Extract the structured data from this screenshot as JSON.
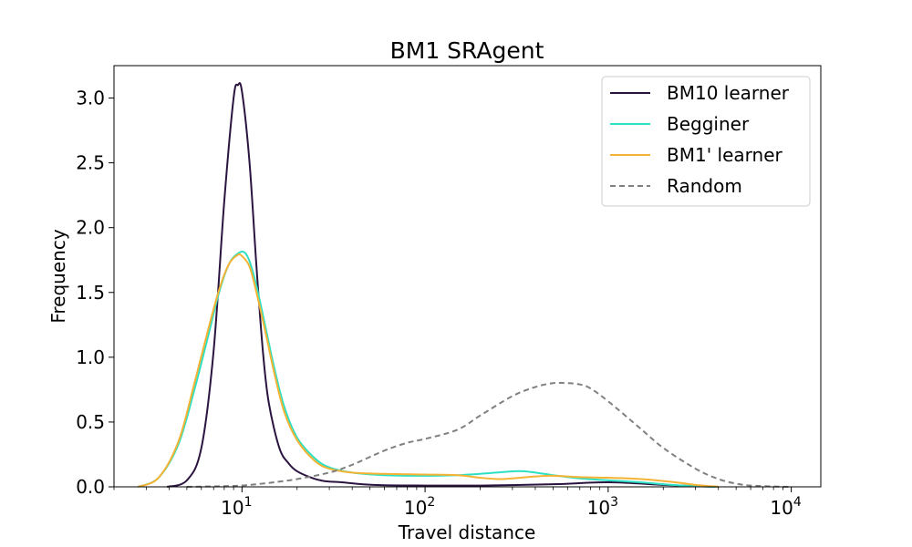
{
  "chart_data": {
    "type": "line",
    "title": "BM1 SRAgent",
    "xlabel": "Travel distance",
    "ylabel": "Frequency",
    "xscale": "log",
    "xlim": [
      2,
      14500
    ],
    "ylim": [
      0,
      3.25
    ],
    "xticks": [
      {
        "value": 10,
        "base": "10",
        "exp": "1"
      },
      {
        "value": 100,
        "base": "10",
        "exp": "2"
      },
      {
        "value": 1000,
        "base": "10",
        "exp": "3"
      },
      {
        "value": 10000,
        "base": "10",
        "exp": "4"
      }
    ],
    "yticks": [
      {
        "value": 0,
        "label": "0.0"
      },
      {
        "value": 0.5,
        "label": "0.5"
      },
      {
        "value": 1.0,
        "label": "1.0"
      },
      {
        "value": 1.5,
        "label": "1.5"
      },
      {
        "value": 2.0,
        "label": "2.0"
      },
      {
        "value": 2.5,
        "label": "2.5"
      },
      {
        "value": 3.0,
        "label": "3.0"
      }
    ],
    "grid": false,
    "legend_position": "top-right",
    "series": [
      {
        "name": "BM10 learner",
        "color": "#2b1540",
        "dash": "solid",
        "x": [
          3.9,
          5,
          6,
          7,
          8,
          9,
          9.5,
          10,
          11,
          12,
          13,
          14,
          16,
          18,
          20,
          24,
          28,
          35,
          45,
          60,
          100,
          200,
          500,
          1000,
          2000,
          3000,
          4000
        ],
        "y": [
          0.0,
          0.05,
          0.3,
          1.05,
          2.2,
          3.0,
          3.1,
          3.05,
          2.5,
          1.7,
          1.05,
          0.65,
          0.3,
          0.18,
          0.12,
          0.07,
          0.045,
          0.035,
          0.02,
          0.012,
          0.01,
          0.01,
          0.02,
          0.035,
          0.015,
          0.005,
          0.0
        ]
      },
      {
        "name": "Begginer",
        "color": "#2de0c3",
        "dash": "solid",
        "x": [
          2.7,
          3.5,
          4.5,
          5.5,
          6.5,
          7.5,
          8.5,
          9.5,
          10.3,
          11,
          12,
          13.5,
          15,
          17,
          20,
          25,
          30,
          40,
          60,
          100,
          150,
          200,
          300,
          350,
          400,
          500,
          700,
          1000,
          1500,
          2000,
          2500,
          3000,
          4000
        ],
        "y": [
          0.0,
          0.07,
          0.33,
          0.75,
          1.15,
          1.5,
          1.72,
          1.8,
          1.81,
          1.74,
          1.55,
          1.22,
          0.92,
          0.62,
          0.38,
          0.22,
          0.15,
          0.11,
          0.09,
          0.085,
          0.09,
          0.1,
          0.12,
          0.12,
          0.11,
          0.09,
          0.065,
          0.05,
          0.035,
          0.02,
          0.01,
          0.005,
          0.0
        ]
      },
      {
        "name": "BM1' learner",
        "color": "#f5b335",
        "dash": "solid",
        "x": [
          2.7,
          3.5,
          4.5,
          5.5,
          6.5,
          7.5,
          8.5,
          9.5,
          10,
          11,
          12,
          13.5,
          15,
          17,
          20,
          25,
          30,
          40,
          60,
          100,
          150,
          200,
          250,
          300,
          400,
          500,
          700,
          1000,
          1500,
          2000,
          2500,
          3000,
          4000
        ],
        "y": [
          0.0,
          0.07,
          0.35,
          0.8,
          1.2,
          1.52,
          1.72,
          1.79,
          1.78,
          1.7,
          1.5,
          1.18,
          0.88,
          0.58,
          0.36,
          0.2,
          0.14,
          0.11,
          0.1,
          0.095,
          0.09,
          0.07,
          0.06,
          0.065,
          0.08,
          0.085,
          0.075,
          0.07,
          0.06,
          0.045,
          0.03,
          0.015,
          0.0
        ]
      },
      {
        "name": "Random",
        "color": "#808080",
        "dash": "dashed",
        "x": [
          5,
          8,
          10,
          12,
          15,
          20,
          30,
          40,
          60,
          80,
          100,
          150,
          200,
          300,
          400,
          500,
          600,
          700,
          800,
          1000,
          1500,
          2000,
          3000,
          4000,
          5000,
          6000,
          8000,
          10000
        ],
        "y": [
          0.0,
          0.005,
          0.01,
          0.02,
          0.035,
          0.06,
          0.11,
          0.17,
          0.28,
          0.34,
          0.37,
          0.44,
          0.55,
          0.7,
          0.77,
          0.8,
          0.8,
          0.79,
          0.76,
          0.66,
          0.45,
          0.3,
          0.14,
          0.06,
          0.025,
          0.01,
          0.003,
          0.0
        ]
      }
    ]
  }
}
